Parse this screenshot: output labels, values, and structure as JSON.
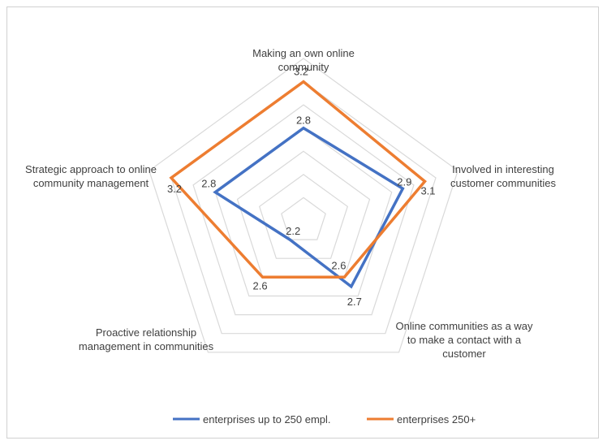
{
  "chart_data": {
    "type": "radar",
    "categories": [
      "Making an own online community",
      "Involved in interesting customer communities",
      "Online communities as a way to make a contact with a customer",
      "Proactive relationship management in communities",
      "Strategic approach to online community management"
    ],
    "category_lines": [
      [
        "Making an own online",
        "community"
      ],
      [
        "Involved in interesting",
        "customer communities"
      ],
      [
        "Online communities as a way",
        "to make a contact with a",
        "customer"
      ],
      [
        "Proactive relationship",
        "management in communities"
      ],
      [
        "Strategic approach to online",
        "community management"
      ]
    ],
    "series": [
      {
        "name": "enterprises up to 250 empl.",
        "color": "#4472C4",
        "values": [
          2.8,
          2.9,
          2.7,
          2.2,
          2.8
        ],
        "labels": [
          "2.8",
          "2.9",
          "2.7",
          "2.2",
          "2.8"
        ]
      },
      {
        "name": "enterprises 250+",
        "color": "#ED7D31",
        "values": [
          3.2,
          3.1,
          2.6,
          2.6,
          3.2
        ],
        "labels": [
          "3.2",
          "3.1",
          "2.6",
          "2.6",
          "3.2"
        ]
      }
    ],
    "rmin": 2.0,
    "rmax": 3.4,
    "gridline_step": 0.2,
    "grid": true,
    "grid_color": "#d9d9d9",
    "legend_position": "bottom"
  }
}
